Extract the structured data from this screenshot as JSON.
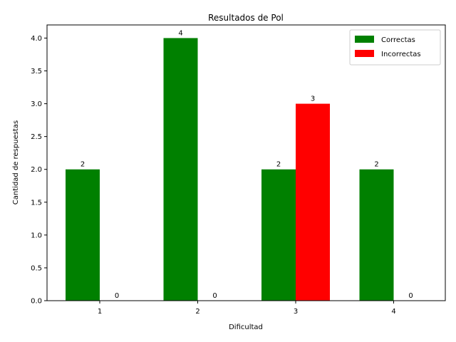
{
  "chart_data": {
    "type": "bar",
    "title": "Resultados de Pol",
    "xlabel": "Dificultad",
    "ylabel": "Cantidad de respuestas",
    "categories": [
      "1",
      "2",
      "3",
      "4"
    ],
    "series": [
      {
        "name": "Correctas",
        "color": "#008000",
        "values": [
          2,
          4,
          2,
          2
        ]
      },
      {
        "name": "Incorrectas",
        "color": "#ff0000",
        "values": [
          0,
          0,
          3,
          0
        ]
      }
    ],
    "ylim": [
      0,
      4.2
    ],
    "yticks": [
      "0.0",
      "0.5",
      "1.0",
      "1.5",
      "2.0",
      "2.5",
      "3.0",
      "3.5",
      "4.0"
    ],
    "legend_position": "upper-right",
    "grid": false
  }
}
